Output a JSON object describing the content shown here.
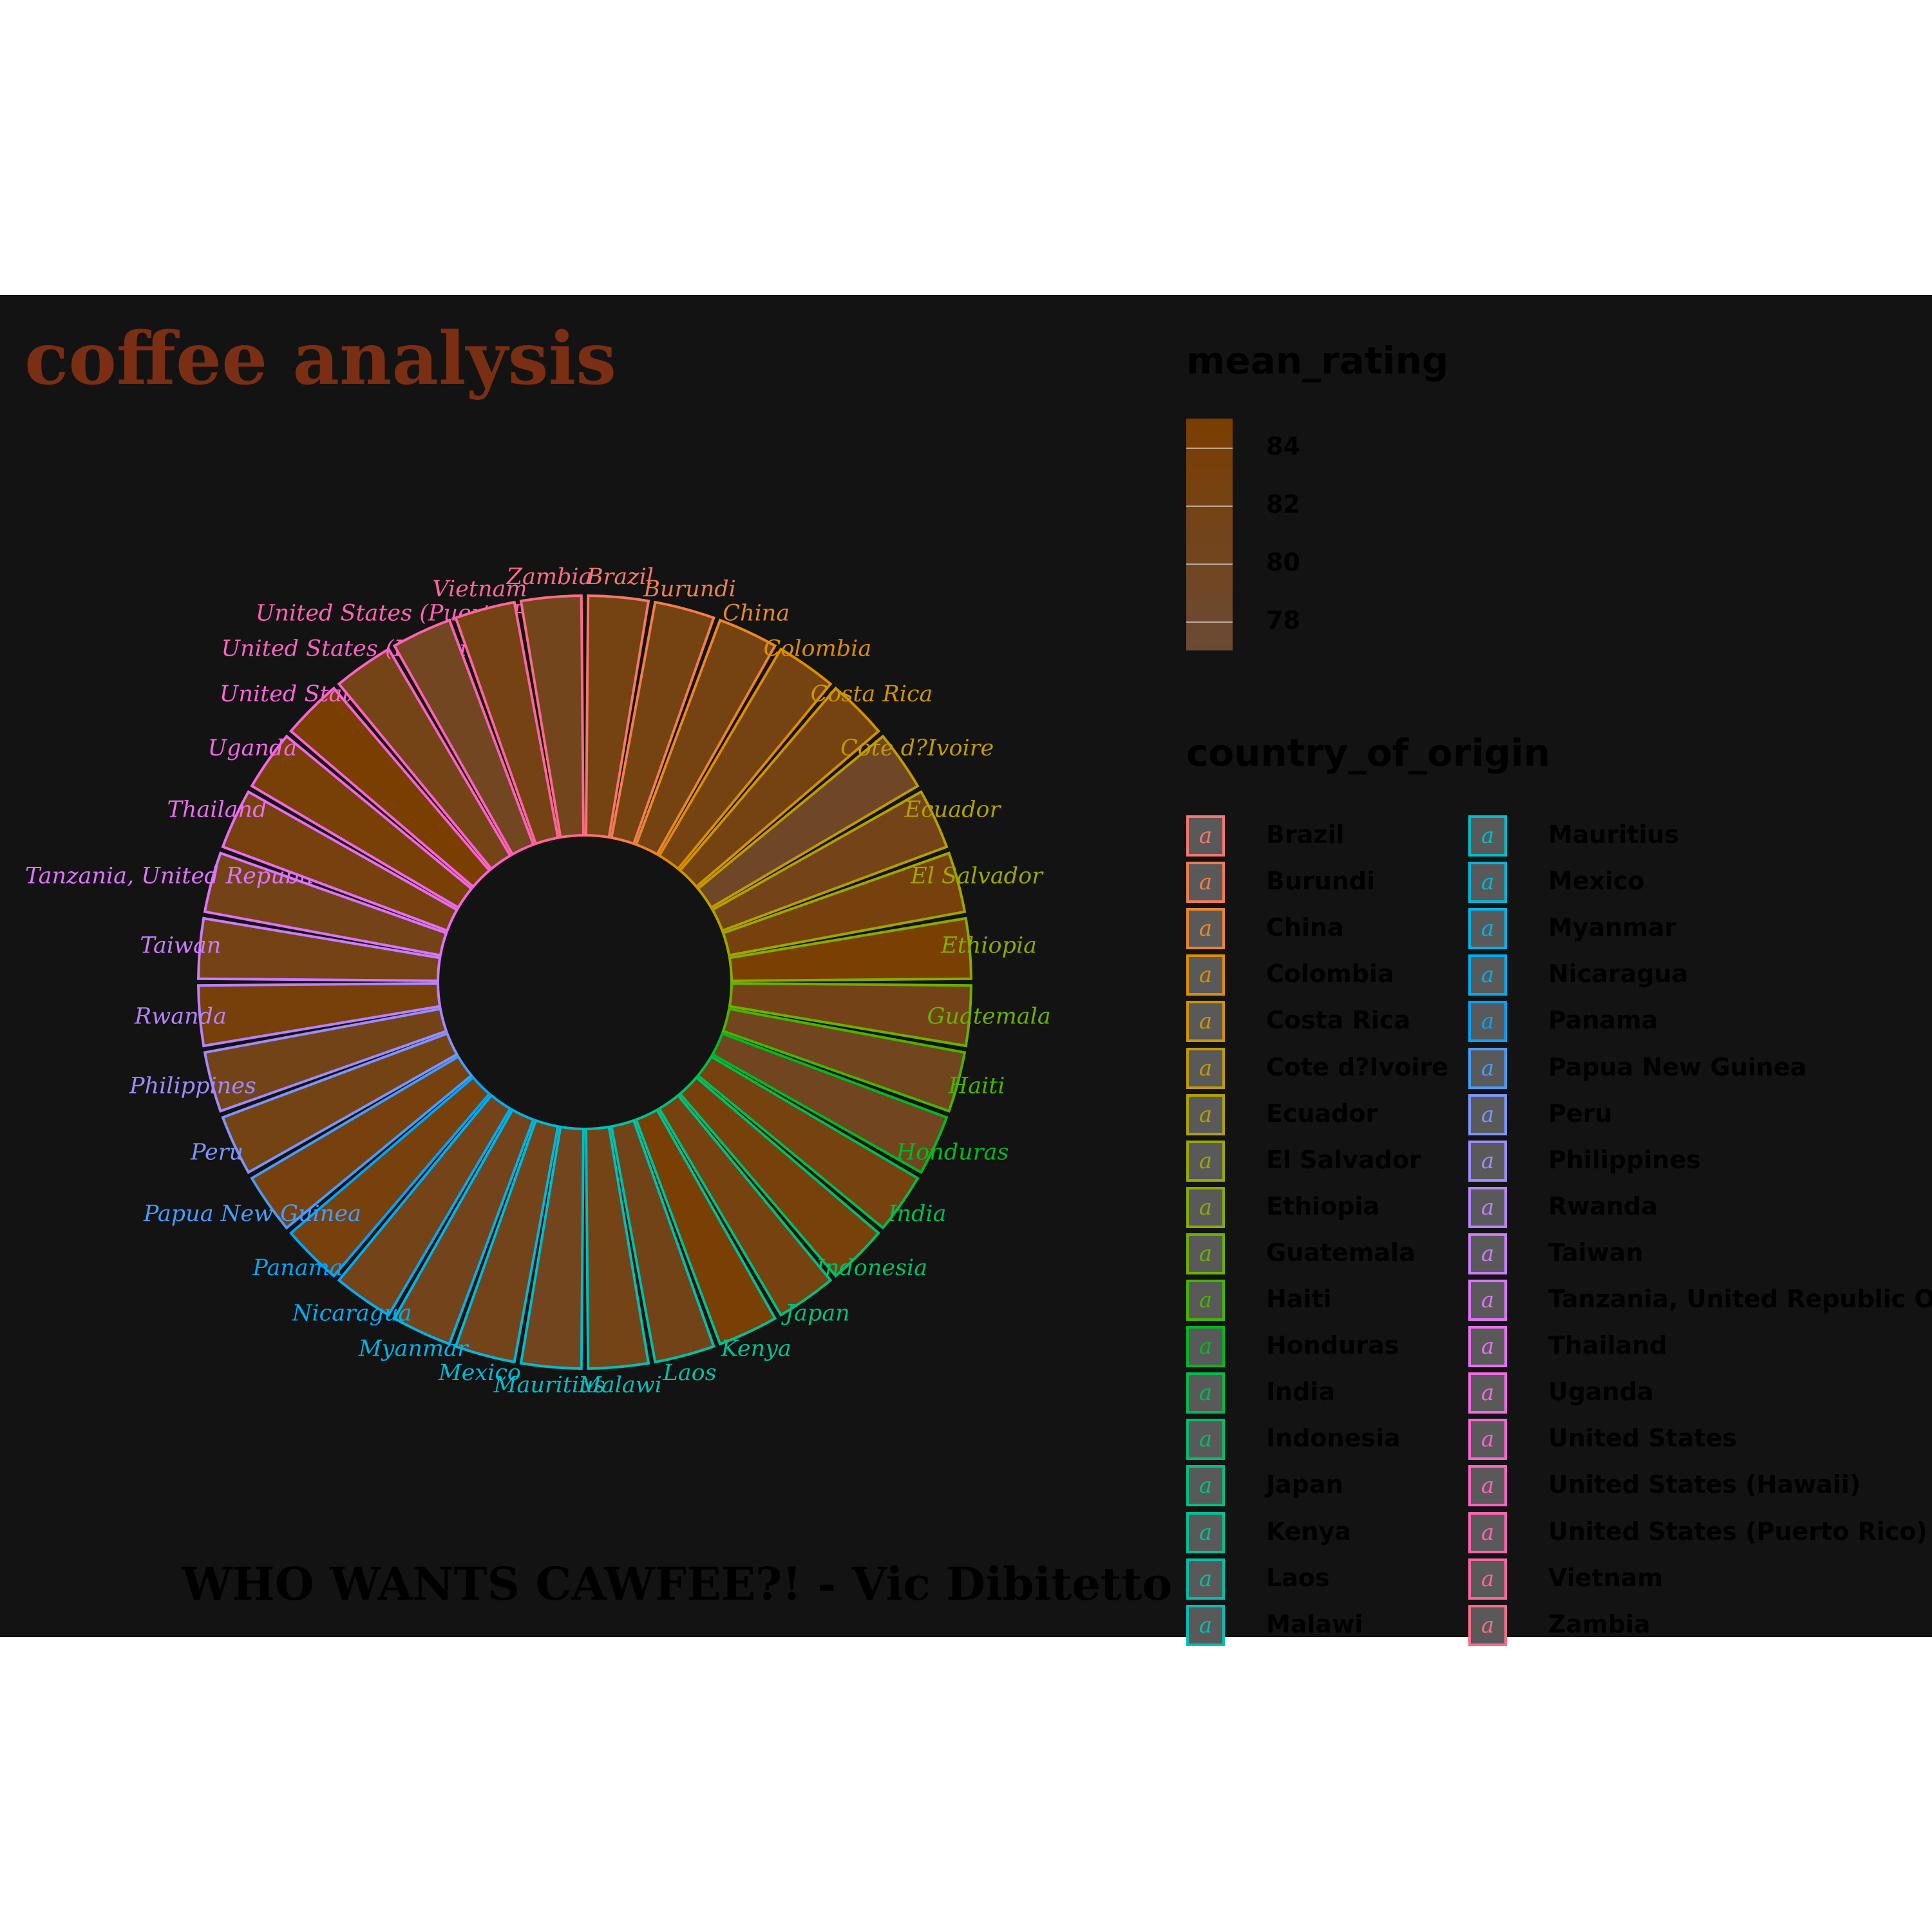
{
  "title": "coffee analysis",
  "caption": "WHO WANTS CAWFEE?! - Vic Dibitetto",
  "legend_fill": {
    "title": "mean_rating",
    "ticks": [
      84,
      82,
      80,
      78
    ],
    "low_color": "#6b4a35",
    "high_color": "#7a3e00"
  },
  "legend_color": {
    "title": "country_of_origin",
    "key_glyph": "a"
  },
  "chart_data": {
    "type": "bar",
    "coord": "polar",
    "x_variable": "country_of_origin",
    "fill_variable": "mean_rating",
    "color_variable": "country_of_origin",
    "fill_range": [
      77,
      85
    ],
    "categories": [
      "Brazil",
      "Burundi",
      "China",
      "Colombia",
      "Costa Rica",
      "Cote d?Ivoire",
      "Ecuador",
      "El Salvador",
      "Ethiopia",
      "Guatemala",
      "Haiti",
      "Honduras",
      "India",
      "Indonesia",
      "Japan",
      "Kenya",
      "Laos",
      "Malawi",
      "Mauritius",
      "Mexico",
      "Myanmar",
      "Nicaragua",
      "Panama",
      "Papua New Guinea",
      "Peru",
      "Philippines",
      "Rwanda",
      "Taiwan",
      "Tanzania, United Republic Of",
      "Thailand",
      "Uganda",
      "United States",
      "United States (Hawaii)",
      "United States (Puerto Rico)",
      "Vietnam",
      "Zambia"
    ],
    "values": [
      82.5,
      82.5,
      82.3,
      82.4,
      82.3,
      79.3,
      81.6,
      83.0,
      84.6,
      81.5,
      80.4,
      80.3,
      82.6,
      83.2,
      82.6,
      84.2,
      81.4,
      81.7,
      80.5,
      81.3,
      81.0,
      81.6,
      83.0,
      82.9,
      82.0,
      81.4,
      83.5,
      82.2,
      81.5,
      82.7,
      83.9,
      84.9,
      81.7,
      80.0,
      82.1,
      80.6
    ],
    "series_colors": [
      "#f8766d",
      "#f17e4e",
      "#e8862c",
      "#dc8d00",
      "#cf9400",
      "#c09b00",
      "#b0a100",
      "#9ca700",
      "#86ac00",
      "#6bb100",
      "#45b500",
      "#00b923",
      "#00bc4f",
      "#00be69",
      "#00c07f",
      "#00c193",
      "#00c1a7",
      "#00c0b8",
      "#00bdc9",
      "#00b9d8",
      "#00b4e5",
      "#00adf0",
      "#00a5fa",
      "#459cff",
      "#7c94ff",
      "#9e8bff",
      "#b783ff",
      "#cb7cff",
      "#dc74fa",
      "#e86ef0",
      "#f268e4",
      "#f964d5",
      "#fd62c4",
      "#ff62b2",
      "#fe659e",
      "#fc6b88"
    ]
  }
}
